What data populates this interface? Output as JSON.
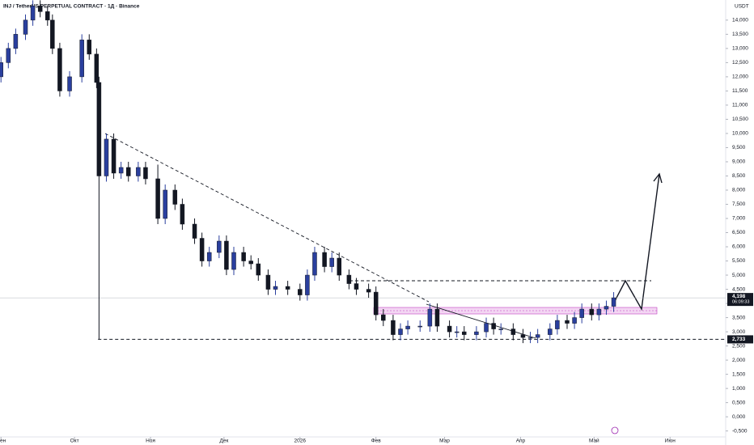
{
  "chart_data": {
    "type": "candlestick",
    "title": "INJ / TetherUS PERPETUAL CONTRACT · 1Д · Binance",
    "y_unit": "USDT",
    "x": [
      -30,
      -27,
      -24,
      -20,
      -17,
      -14,
      -11,
      -9,
      -6,
      -2,
      3,
      6,
      9,
      10,
      13,
      16,
      19,
      22,
      26,
      29,
      34,
      37,
      41,
      44,
      49,
      52,
      55,
      59,
      62,
      65,
      69,
      72,
      75,
      79,
      82,
      87,
      92,
      95,
      98,
      102,
      105,
      108,
      112,
      115,
      120,
      123,
      126,
      130,
      133,
      136,
      141,
      145,
      148,
      153,
      156,
      159,
      164,
      168,
      171,
      174,
      179,
      183,
      186,
      189,
      194,
      197,
      201,
      204,
      207,
      211,
      214,
      217,
      220
    ],
    "open": [
      12.0,
      12.5,
      13.0,
      13.5,
      14.0,
      14.5,
      14.3,
      14.0,
      13.0,
      11.5,
      12.0,
      13.3,
      12.8,
      11.8,
      8.5,
      9.8,
      8.6,
      8.8,
      8.5,
      8.8,
      8.4,
      7.0,
      8.0,
      7.5,
      6.8,
      6.3,
      5.5,
      5.8,
      6.2,
      5.2,
      5.8,
      5.5,
      5.4,
      5.0,
      4.5,
      4.6,
      4.5,
      4.3,
      5.0,
      5.8,
      5.3,
      5.6,
      5.0,
      4.7,
      4.5,
      4.4,
      3.6,
      3.4,
      2.9,
      3.1,
      3.2,
      3.2,
      3.8,
      3.2,
      3.0,
      3.0,
      2.9,
      3.0,
      3.3,
      3.1,
      3.1,
      2.9,
      2.8,
      2.8,
      2.9,
      3.1,
      3.4,
      3.3,
      3.5,
      3.8,
      3.6,
      3.8,
      3.9
    ],
    "high": [
      12.7,
      13.2,
      13.7,
      14.2,
      14.7,
      14.7,
      14.5,
      14.2,
      13.2,
      12.2,
      13.5,
      13.5,
      13.0,
      12.0,
      10.0,
      10.0,
      9.0,
      9.0,
      9.0,
      9.0,
      8.9,
      8.2,
      8.2,
      7.7,
      7.0,
      6.5,
      6.0,
      6.4,
      6.4,
      6.0,
      6.0,
      5.7,
      5.6,
      5.2,
      4.8,
      4.8,
      4.7,
      5.2,
      6.0,
      6.0,
      5.8,
      5.8,
      5.2,
      4.9,
      4.7,
      4.6,
      3.8,
      3.6,
      3.3,
      3.4,
      3.4,
      4.0,
      4.0,
      3.4,
      3.2,
      3.2,
      3.2,
      3.5,
      3.5,
      3.3,
      3.3,
      3.1,
      3.0,
      3.1,
      3.3,
      3.6,
      3.6,
      3.7,
      4.0,
      4.0,
      4.0,
      4.1,
      4.4
    ],
    "low": [
      11.8,
      12.3,
      12.8,
      13.3,
      13.8,
      14.1,
      13.8,
      12.8,
      11.3,
      11.3,
      11.8,
      12.6,
      11.6,
      2.733,
      8.3,
      8.4,
      8.4,
      8.3,
      8.3,
      8.2,
      6.8,
      6.8,
      7.3,
      6.6,
      6.1,
      5.3,
      5.3,
      5.6,
      5.0,
      5.0,
      5.3,
      5.2,
      4.8,
      4.3,
      4.3,
      4.3,
      4.1,
      4.1,
      4.8,
      5.1,
      5.1,
      4.8,
      4.5,
      4.3,
      4.2,
      3.4,
      3.2,
      2.7,
      2.7,
      2.9,
      3.0,
      3.0,
      3.0,
      2.8,
      2.8,
      2.7,
      2.7,
      2.8,
      2.9,
      2.9,
      2.7,
      2.6,
      2.6,
      2.6,
      2.7,
      2.9,
      3.1,
      3.1,
      3.3,
      3.4,
      3.4,
      3.6,
      3.7
    ],
    "close": [
      12.5,
      13.0,
      13.5,
      14.0,
      14.5,
      14.3,
      14.0,
      13.0,
      11.5,
      12.0,
      13.3,
      12.8,
      11.8,
      8.5,
      9.8,
      8.6,
      8.8,
      8.5,
      8.8,
      8.4,
      7.0,
      8.0,
      7.5,
      6.8,
      6.3,
      5.5,
      5.8,
      6.2,
      5.2,
      5.8,
      5.5,
      5.4,
      5.0,
      4.5,
      4.6,
      4.5,
      4.3,
      5.0,
      5.8,
      5.3,
      5.6,
      5.0,
      4.7,
      4.5,
      4.4,
      3.6,
      3.4,
      2.9,
      3.1,
      3.2,
      3.2,
      3.8,
      3.2,
      3.0,
      3.0,
      2.9,
      3.0,
      3.3,
      3.1,
      3.1,
      2.9,
      2.8,
      2.8,
      2.9,
      3.1,
      3.4,
      3.3,
      3.5,
      3.8,
      3.6,
      3.8,
      3.9,
      4.2
    ],
    "up_color": "#2a3f9e",
    "down_color": "#131722",
    "xlim": [
      -30.4,
      265.7
    ],
    "xticks": [
      {
        "value": -30,
        "label": "Сен"
      },
      {
        "value": 0,
        "label": "Окт"
      },
      {
        "value": 31,
        "label": "Ноя"
      },
      {
        "value": 61,
        "label": "Дек"
      },
      {
        "value": 92,
        "label": "2026"
      },
      {
        "value": 123,
        "label": "Фев"
      },
      {
        "value": 151,
        "label": "Мар"
      },
      {
        "value": 182,
        "label": "Апр"
      },
      {
        "value": 212,
        "label": "Май"
      },
      {
        "value": 243,
        "label": "Июн"
      }
    ],
    "ylim": [
      -0.71,
      14.71
    ],
    "yticks": [
      {
        "value": -0.5,
        "label": "-0,500"
      },
      {
        "value": 0,
        "label": "0,000"
      },
      {
        "value": 0.5,
        "label": "0,500"
      },
      {
        "value": 1,
        "label": "1,000"
      },
      {
        "value": 1.5,
        "label": "1,500"
      },
      {
        "value": 2,
        "label": "2,000"
      },
      {
        "value": 2.5,
        "label": "2,500"
      },
      {
        "value": 3,
        "label": "3,000"
      },
      {
        "value": 3.5,
        "label": "3,500"
      },
      {
        "value": 4,
        "label": "4,000"
      },
      {
        "value": 4.5,
        "label": "4,500"
      },
      {
        "value": 5,
        "label": "5,000"
      },
      {
        "value": 5.5,
        "label": "5,500"
      },
      {
        "value": 6,
        "label": "6,000"
      },
      {
        "value": 6.5,
        "label": "6,500"
      },
      {
        "value": 7,
        "label": "7,000"
      },
      {
        "value": 7.5,
        "label": "7,500"
      },
      {
        "value": 8,
        "label": "8,000"
      },
      {
        "value": 8.5,
        "label": "8,500"
      },
      {
        "value": 9,
        "label": "9,000"
      },
      {
        "value": 9.5,
        "label": "9,500"
      },
      {
        "value": 10,
        "label": "10,000"
      },
      {
        "value": 10.5,
        "label": "10,500"
      },
      {
        "value": 11,
        "label": "11,000"
      },
      {
        "value": 11.5,
        "label": "11,500"
      },
      {
        "value": 12,
        "label": "12,000"
      },
      {
        "value": 12.5,
        "label": "12,500"
      },
      {
        "value": 13,
        "label": "13,000"
      },
      {
        "value": 13.5,
        "label": "13,500"
      },
      {
        "value": 14,
        "label": "14,000"
      }
    ],
    "last_price": {
      "value": 4.198,
      "label": "4,198"
    },
    "countdown": "06:09:33",
    "support_level": {
      "value": 2.733,
      "label": "2,733"
    }
  }
}
